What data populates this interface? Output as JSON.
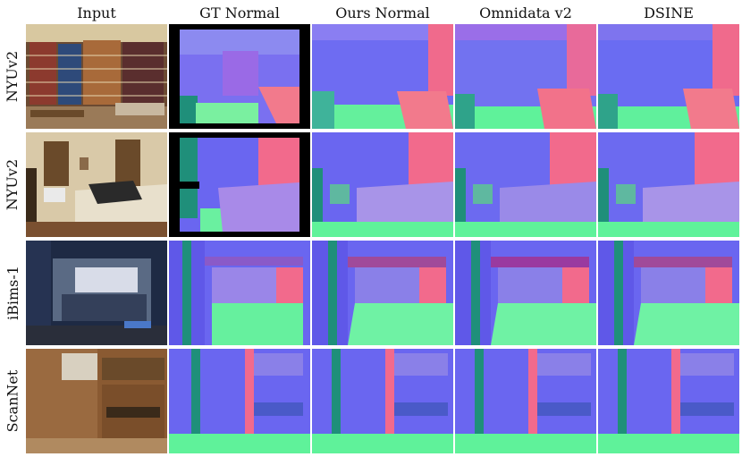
{
  "columns": [
    "Input",
    "GT Normal",
    "Ours Normal",
    "Omnidata v2",
    "DSINE"
  ],
  "rows": [
    "NYUv2",
    "NYUv2",
    "iBims-1",
    "ScanNet"
  ],
  "palette": {
    "normal_blue": "#6c6cf0",
    "normal_violet": "#8a62e8",
    "normal_pink": "#f26a8c",
    "normal_green": "#5ff29a",
    "normal_teal": "#1f8f7a",
    "invalid_black": "#000000",
    "wood_brown": "#8a5a32",
    "wall_cream": "#d9c9a8",
    "ceiling_dark": "#1e2a44"
  }
}
